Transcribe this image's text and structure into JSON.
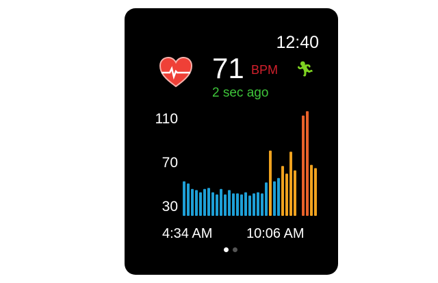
{
  "status": {
    "time": "12:40"
  },
  "heart_rate": {
    "value": "71",
    "unit": "BPM",
    "updated": "2 sec ago",
    "activity_icon": "running-figure-icon",
    "heart_icon": "heart-ecg-icon"
  },
  "colors": {
    "resting": "#1e9fd6",
    "elevated": "#f0a21f",
    "high": "#e8612a",
    "bpm_unit": "#d2202c",
    "updated": "#3ec43a",
    "activity": "#7ed321"
  },
  "chart_data": {
    "type": "bar",
    "y_ticks": [
      "110",
      "70",
      "30"
    ],
    "x_labels": [
      "4:34 AM",
      "10:06 AM"
    ],
    "ylim": [
      22,
      125
    ],
    "values": [
      54,
      52,
      47,
      46,
      44,
      47,
      48,
      44,
      42,
      47,
      42,
      46,
      43,
      43,
      42,
      44,
      41,
      43,
      44,
      43,
      53,
      82,
      54,
      57,
      68,
      61,
      81,
      64,
      null,
      114,
      118,
      69,
      66
    ],
    "zones": [
      "resting",
      "resting",
      "resting",
      "resting",
      "resting",
      "resting",
      "resting",
      "resting",
      "resting",
      "resting",
      "resting",
      "resting",
      "resting",
      "resting",
      "resting",
      "resting",
      "resting",
      "resting",
      "resting",
      "resting",
      "resting",
      "elevated",
      "resting",
      "resting",
      "elevated",
      "elevated",
      "elevated",
      "elevated",
      null,
      "high",
      "high",
      "elevated",
      "elevated"
    ]
  },
  "pager": {
    "pages": 2,
    "current": 1
  }
}
